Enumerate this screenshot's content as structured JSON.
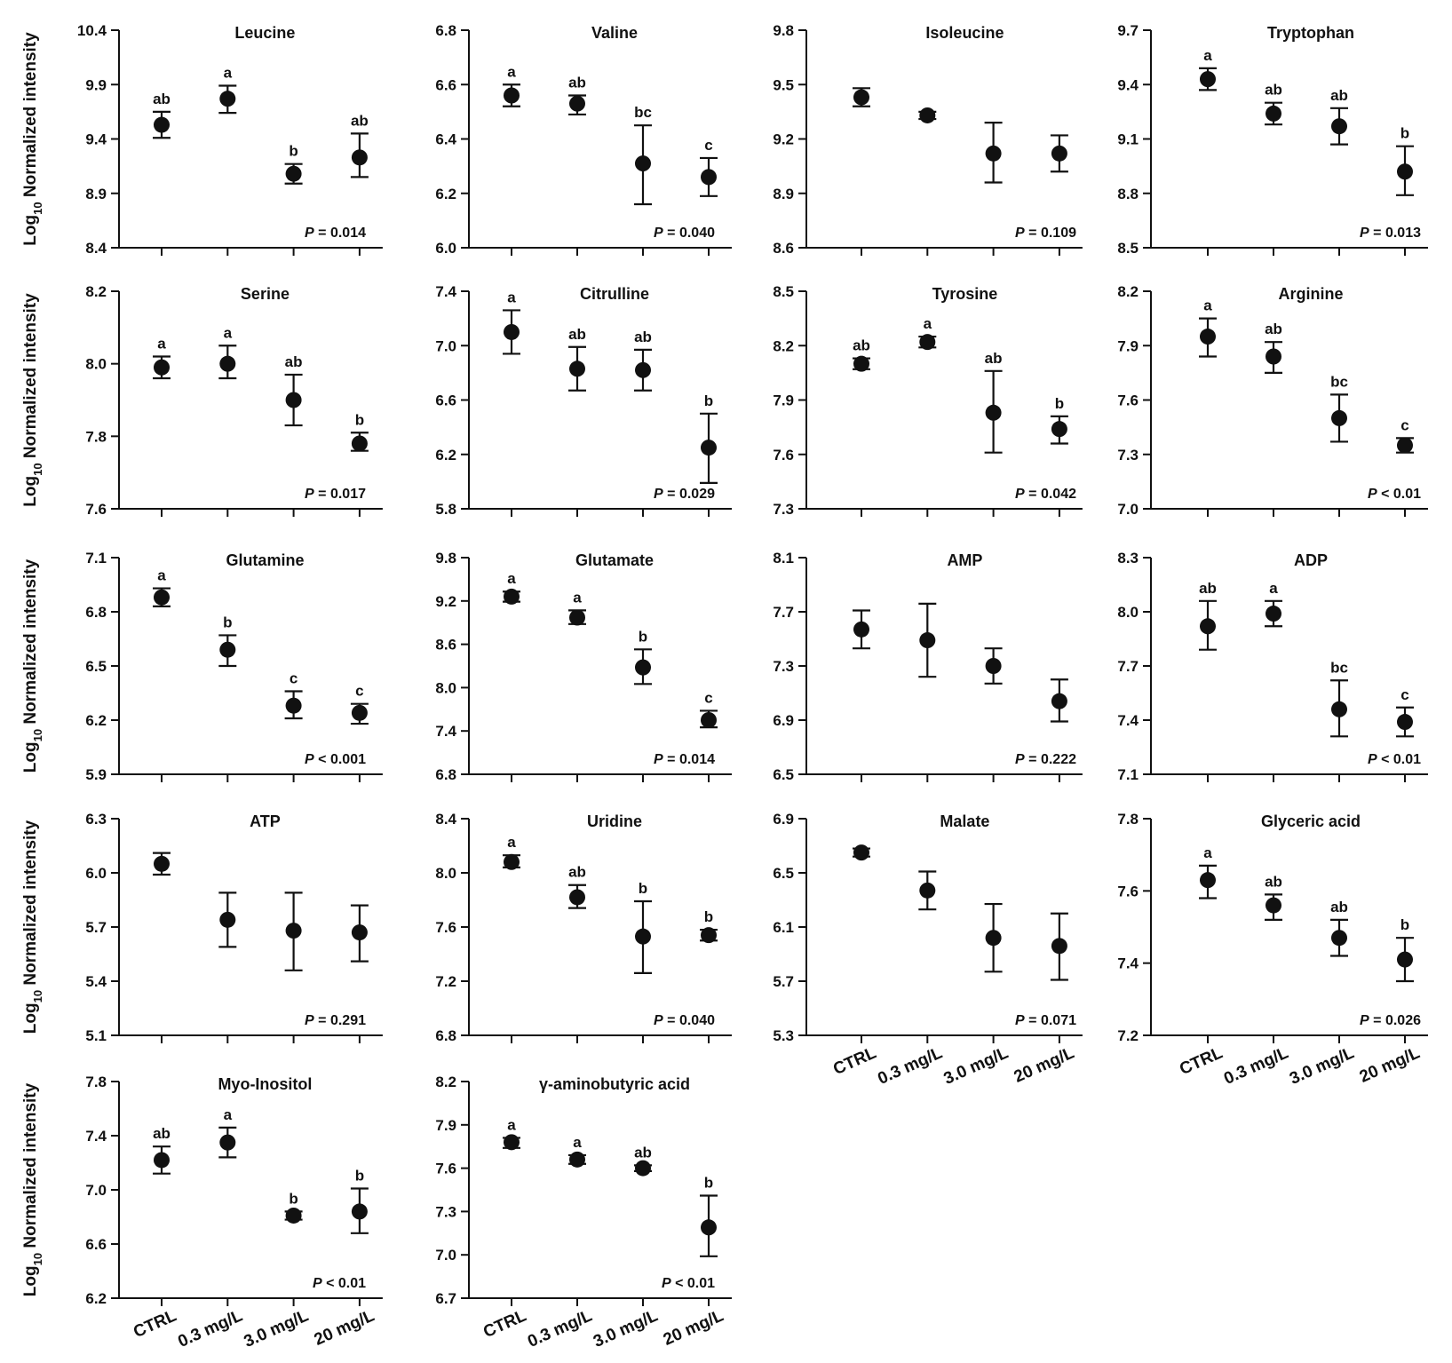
{
  "y_axis_label": {
    "prefix": "Log",
    "subscript": "10",
    "suffix": " Normalized intensity"
  },
  "p_label": "P",
  "x_categories": [
    "CTRL",
    "0.3 mg/L",
    "3.0 mg/L",
    "20 mg/L"
  ],
  "chart_data": [
    {
      "type": "scatter",
      "title": "Leucine",
      "yticks": [
        "8.4",
        "8.9",
        "9.4",
        "9.9",
        "10.4"
      ],
      "ylim": [
        8.4,
        10.4
      ],
      "means": [
        9.53,
        9.77,
        9.08,
        9.23
      ],
      "lower": [
        9.41,
        9.64,
        8.99,
        9.05
      ],
      "upper": [
        9.65,
        9.89,
        9.17,
        9.45
      ],
      "letters": [
        "ab",
        "a",
        "b",
        "ab"
      ],
      "p_value": "= 0.014"
    },
    {
      "type": "scatter",
      "title": "Valine",
      "yticks": [
        "6.0",
        "6.2",
        "6.4",
        "6.6",
        "6.8"
      ],
      "ylim": [
        6.0,
        6.8
      ],
      "means": [
        6.56,
        6.53,
        6.31,
        6.26
      ],
      "lower": [
        6.52,
        6.49,
        6.16,
        6.19
      ],
      "upper": [
        6.6,
        6.56,
        6.45,
        6.33
      ],
      "letters": [
        "a",
        "ab",
        "bc",
        "c"
      ],
      "p_value": "= 0.040"
    },
    {
      "type": "scatter",
      "title": "Isoleucine",
      "yticks": [
        "8.6",
        "8.9",
        "9.2",
        "9.5",
        "9.8"
      ],
      "ylim": [
        8.6,
        9.8
      ],
      "means": [
        9.43,
        9.33,
        9.12,
        9.12
      ],
      "lower": [
        9.38,
        9.31,
        8.96,
        9.02
      ],
      "upper": [
        9.48,
        9.35,
        9.29,
        9.22
      ],
      "letters": [
        "",
        "",
        "",
        ""
      ],
      "p_value": "= 0.109"
    },
    {
      "type": "scatter",
      "title": "Tryptophan",
      "yticks": [
        "8.5",
        "8.8",
        "9.1",
        "9.4",
        "9.7"
      ],
      "ylim": [
        8.5,
        9.7
      ],
      "means": [
        9.43,
        9.24,
        9.17,
        8.92
      ],
      "lower": [
        9.37,
        9.18,
        9.07,
        8.79
      ],
      "upper": [
        9.49,
        9.3,
        9.27,
        9.06
      ],
      "letters": [
        "a",
        "ab",
        "ab",
        "b"
      ],
      "p_value": "= 0.013"
    },
    {
      "type": "scatter",
      "title": "Serine",
      "yticks": [
        "7.6",
        "7.8",
        "8.0",
        "8.2"
      ],
      "ylim": [
        7.6,
        8.2
      ],
      "means": [
        7.99,
        8.0,
        7.9,
        7.78
      ],
      "lower": [
        7.96,
        7.96,
        7.83,
        7.76
      ],
      "upper": [
        8.02,
        8.05,
        7.97,
        7.81
      ],
      "letters": [
        "a",
        "a",
        "ab",
        "b"
      ],
      "p_value": "= 0.017"
    },
    {
      "type": "scatter",
      "title": "Citrulline",
      "yticks": [
        "5.8",
        "6.2",
        "6.6",
        "7.0",
        "7.4"
      ],
      "ylim": [
        5.8,
        7.4
      ],
      "means": [
        7.1,
        6.83,
        6.82,
        6.25
      ],
      "lower": [
        6.94,
        6.67,
        6.67,
        5.99
      ],
      "upper": [
        7.26,
        6.99,
        6.97,
        6.5
      ],
      "letters": [
        "a",
        "ab",
        "ab",
        "b"
      ],
      "p_value": "= 0.029"
    },
    {
      "type": "scatter",
      "title": "Tyrosine",
      "yticks": [
        "7.3",
        "7.6",
        "7.9",
        "8.2",
        "8.5"
      ],
      "ylim": [
        7.3,
        8.5
      ],
      "means": [
        8.1,
        8.22,
        7.83,
        7.74
      ],
      "lower": [
        8.07,
        8.19,
        7.61,
        7.66
      ],
      "upper": [
        8.13,
        8.25,
        8.06,
        7.81
      ],
      "letters": [
        "ab",
        "a",
        "ab",
        "b"
      ],
      "p_value": "= 0.042"
    },
    {
      "type": "scatter",
      "title": "Arginine",
      "yticks": [
        "7.0",
        "7.3",
        "7.6",
        "7.9",
        "8.2"
      ],
      "ylim": [
        7.0,
        8.2
      ],
      "means": [
        7.95,
        7.84,
        7.5,
        7.35
      ],
      "lower": [
        7.84,
        7.75,
        7.37,
        7.31
      ],
      "upper": [
        8.05,
        7.92,
        7.63,
        7.39
      ],
      "letters": [
        "a",
        "ab",
        "bc",
        "c"
      ],
      "p_value": "< 0.01"
    },
    {
      "type": "scatter",
      "title": "Glutamine",
      "yticks": [
        "5.9",
        "6.2",
        "6.5",
        "6.8",
        "7.1"
      ],
      "ylim": [
        5.9,
        7.1
      ],
      "means": [
        6.88,
        6.59,
        6.28,
        6.24
      ],
      "lower": [
        6.83,
        6.5,
        6.21,
        6.18
      ],
      "upper": [
        6.93,
        6.67,
        6.36,
        6.29
      ],
      "letters": [
        "a",
        "b",
        "c",
        "c"
      ],
      "p_value": "< 0.001"
    },
    {
      "type": "scatter",
      "title": "Glutamate",
      "yticks": [
        "6.8",
        "7.4",
        "8.0",
        "8.6",
        "9.2",
        "9.8"
      ],
      "ylim": [
        6.8,
        9.8
      ],
      "means": [
        9.26,
        8.97,
        8.28,
        7.55
      ],
      "lower": [
        9.19,
        8.88,
        8.05,
        7.45
      ],
      "upper": [
        9.33,
        9.07,
        8.53,
        7.68
      ],
      "letters": [
        "a",
        "a",
        "b",
        "c"
      ],
      "p_value": "= 0.014"
    },
    {
      "type": "scatter",
      "title": "AMP",
      "yticks": [
        "6.5",
        "6.9",
        "7.3",
        "7.7",
        "8.1"
      ],
      "ylim": [
        6.5,
        8.1
      ],
      "means": [
        7.57,
        7.49,
        7.3,
        7.04
      ],
      "lower": [
        7.43,
        7.22,
        7.17,
        6.89
      ],
      "upper": [
        7.71,
        7.76,
        7.43,
        7.2
      ],
      "letters": [
        "",
        "",
        "",
        ""
      ],
      "p_value": "= 0.222"
    },
    {
      "type": "scatter",
      "title": "ADP",
      "yticks": [
        "7.1",
        "7.4",
        "7.7",
        "8.0",
        "8.3"
      ],
      "ylim": [
        7.1,
        8.3
      ],
      "means": [
        7.92,
        7.99,
        7.46,
        7.39
      ],
      "lower": [
        7.79,
        7.92,
        7.31,
        7.31
      ],
      "upper": [
        8.06,
        8.06,
        7.62,
        7.47
      ],
      "letters": [
        "ab",
        "a",
        "bc",
        "c"
      ],
      "p_value": "< 0.01"
    },
    {
      "type": "scatter",
      "title": "ATP",
      "yticks": [
        "5.1",
        "5.4",
        "5.7",
        "6.0",
        "6.3"
      ],
      "ylim": [
        5.1,
        6.3
      ],
      "means": [
        6.05,
        5.74,
        5.68,
        5.67
      ],
      "lower": [
        5.99,
        5.59,
        5.46,
        5.51
      ],
      "upper": [
        6.11,
        5.89,
        5.89,
        5.82
      ],
      "letters": [
        "",
        "",
        "",
        ""
      ],
      "p_value": "= 0.291"
    },
    {
      "type": "scatter",
      "title": "Uridine",
      "yticks": [
        "6.8",
        "7.2",
        "7.6",
        "8.0",
        "8.4"
      ],
      "ylim": [
        6.8,
        8.4
      ],
      "means": [
        8.08,
        7.82,
        7.53,
        7.54
      ],
      "lower": [
        8.04,
        7.74,
        7.26,
        7.5
      ],
      "upper": [
        8.13,
        7.91,
        7.79,
        7.58
      ],
      "letters": [
        "a",
        "ab",
        "b",
        "b"
      ],
      "p_value": "= 0.040"
    },
    {
      "type": "scatter",
      "title": "Malate",
      "yticks": [
        "5.3",
        "5.7",
        "6.1",
        "6.5",
        "6.9"
      ],
      "ylim": [
        5.3,
        6.9
      ],
      "means": [
        6.65,
        6.37,
        6.02,
        5.96
      ],
      "lower": [
        6.62,
        6.23,
        5.77,
        5.71
      ],
      "upper": [
        6.68,
        6.51,
        6.27,
        6.2
      ],
      "letters": [
        "",
        "",
        "",
        ""
      ],
      "p_value": "= 0.071"
    },
    {
      "type": "scatter",
      "title": "Glyceric acid",
      "yticks": [
        "7.2",
        "7.4",
        "7.6",
        "7.8"
      ],
      "ylim": [
        7.2,
        7.8
      ],
      "means": [
        7.63,
        7.56,
        7.47,
        7.41
      ],
      "lower": [
        7.58,
        7.52,
        7.42,
        7.35
      ],
      "upper": [
        7.67,
        7.59,
        7.52,
        7.47
      ],
      "letters": [
        "a",
        "ab",
        "ab",
        "b"
      ],
      "p_value": "= 0.026"
    },
    {
      "type": "scatter",
      "title": "Myo-Inositol",
      "yticks": [
        "6.2",
        "6.6",
        "7.0",
        "7.4",
        "7.8"
      ],
      "ylim": [
        6.2,
        7.8
      ],
      "means": [
        7.22,
        7.35,
        6.81,
        6.84
      ],
      "lower": [
        7.12,
        7.24,
        6.78,
        6.68
      ],
      "upper": [
        7.32,
        7.46,
        6.84,
        7.01
      ],
      "letters": [
        "ab",
        "a",
        "b",
        "b"
      ],
      "p_value": "< 0.01"
    },
    {
      "type": "scatter",
      "title": "γ-aminobutyric acid",
      "yticks": [
        "6.7",
        "7.0",
        "7.3",
        "7.6",
        "7.9",
        "8.2"
      ],
      "ylim": [
        6.7,
        8.2
      ],
      "means": [
        7.78,
        7.66,
        7.6,
        7.19
      ],
      "lower": [
        7.74,
        7.63,
        7.58,
        6.99
      ],
      "upper": [
        7.81,
        7.69,
        7.62,
        7.41
      ],
      "letters": [
        "a",
        "a",
        "ab",
        "b"
      ],
      "p_value": "< 0.01"
    }
  ]
}
